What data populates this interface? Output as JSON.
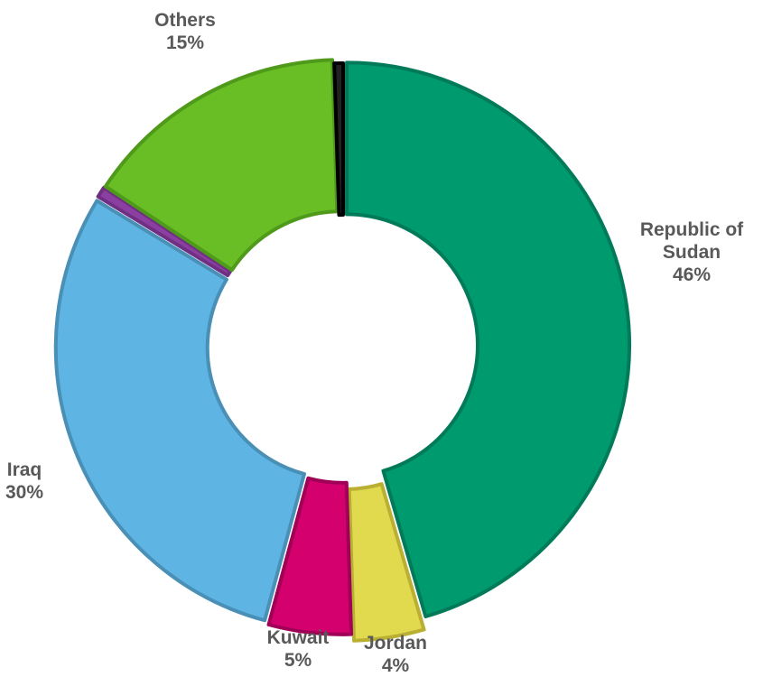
{
  "chart_data": {
    "type": "donut",
    "title": "",
    "legend": "none",
    "segments": [
      {
        "label_lines": [
          "Republic of",
          "Sudan"
        ],
        "value": 45.5,
        "value_label": "46%",
        "color": "#009a6f",
        "border": "#007a58",
        "explode": 0.013
      },
      {
        "label_lines": [
          "Jordan"
        ],
        "value": 4.0,
        "value_label": "4%",
        "color": "#e1d94e",
        "border": "#b9b033",
        "explode": 0.045
      },
      {
        "label_lines": [
          "Kuwait"
        ],
        "value": 4.7,
        "value_label": "5%",
        "color": "#d4006e",
        "border": "#a00055",
        "explode": 0.022
      },
      {
        "label_lines": [
          "Iraq"
        ],
        "value": 29.5,
        "value_label": "30%",
        "color": "#5eb4e2",
        "border": "#4a8fb5",
        "explode": 0.018
      },
      {
        "label_lines": [
          ""
        ],
        "value": 0.6,
        "value_label": "",
        "color": "#8b3fa0",
        "border": "#6f2f82",
        "explode": 0.015
      },
      {
        "label_lines": [
          "Others"
        ],
        "value": 15.2,
        "value_label": "15%",
        "color": "#69bd25",
        "border": "#4f9a1a",
        "explode": 0.014
      },
      {
        "label_lines": [
          ""
        ],
        "value": 0.5,
        "value_label": "",
        "color": "#222222",
        "border": "#000000",
        "explode": 0.0
      }
    ]
  }
}
